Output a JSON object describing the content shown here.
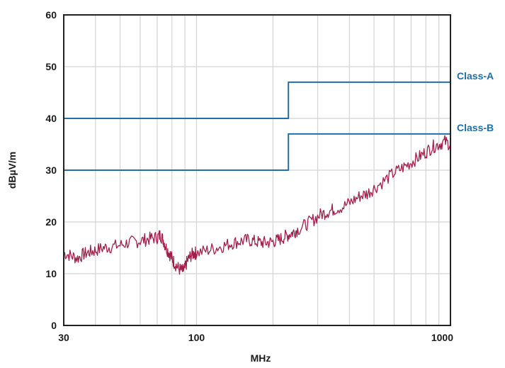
{
  "chart_data": {
    "type": "line",
    "title": "",
    "xlabel": "MHz",
    "ylabel": "dBµV/m",
    "xscale": "log",
    "xlim": [
      30,
      1000
    ],
    "ylim": [
      0,
      60
    ],
    "grid": true,
    "x_tick_labels": [
      "30",
      "100",
      "1000"
    ],
    "y_tick_labels": [
      "0",
      "10",
      "20",
      "30",
      "40",
      "50",
      "60"
    ],
    "colors": {
      "limit": "#1f6fa8",
      "measured": "#a31f4a",
      "grid": "#d4d4d4",
      "axis": "#222222"
    },
    "series": [
      {
        "name": "Class-A",
        "x": [
          30,
          230,
          230,
          1000
        ],
        "y": [
          40,
          40,
          47,
          47
        ]
      },
      {
        "name": "Class-B",
        "x": [
          30,
          230,
          230,
          1000
        ],
        "y": [
          30,
          30,
          37,
          37
        ]
      },
      {
        "x": [
          30,
          32,
          34,
          36,
          38,
          40,
          43,
          46,
          50,
          54,
          58,
          62,
          66,
          70,
          72,
          74,
          76,
          78,
          80,
          82,
          85,
          88,
          90,
          92,
          95,
          98,
          100,
          110,
          120,
          130,
          140,
          150,
          160,
          170,
          180,
          190,
          200,
          210,
          220,
          230,
          240,
          250,
          270,
          290,
          310,
          330,
          350,
          380,
          410,
          440,
          470,
          500,
          550,
          600,
          650,
          700,
          750,
          800,
          850,
          900,
          950,
          1000
        ],
        "y": [
          14.0,
          13.5,
          13.0,
          13.8,
          14.2,
          14.5,
          15.0,
          15.2,
          15.5,
          16.0,
          16.2,
          16.5,
          16.8,
          17.0,
          17.5,
          16.5,
          15.0,
          14.0,
          13.0,
          12.0,
          11.0,
          10.5,
          11.0,
          12.5,
          13.5,
          14.0,
          14.0,
          14.5,
          15.0,
          15.5,
          16.0,
          16.3,
          16.5,
          16.2,
          16.0,
          16.0,
          16.2,
          16.5,
          17.0,
          17.5,
          18.0,
          18.5,
          19.5,
          20.5,
          21.5,
          22.0,
          22.5,
          23.0,
          24.0,
          25.0,
          25.5,
          26.5,
          28.0,
          29.5,
          30.5,
          31.5,
          32.5,
          33.5,
          34.5,
          35.0,
          35.5,
          35.0
        ]
      }
    ]
  }
}
